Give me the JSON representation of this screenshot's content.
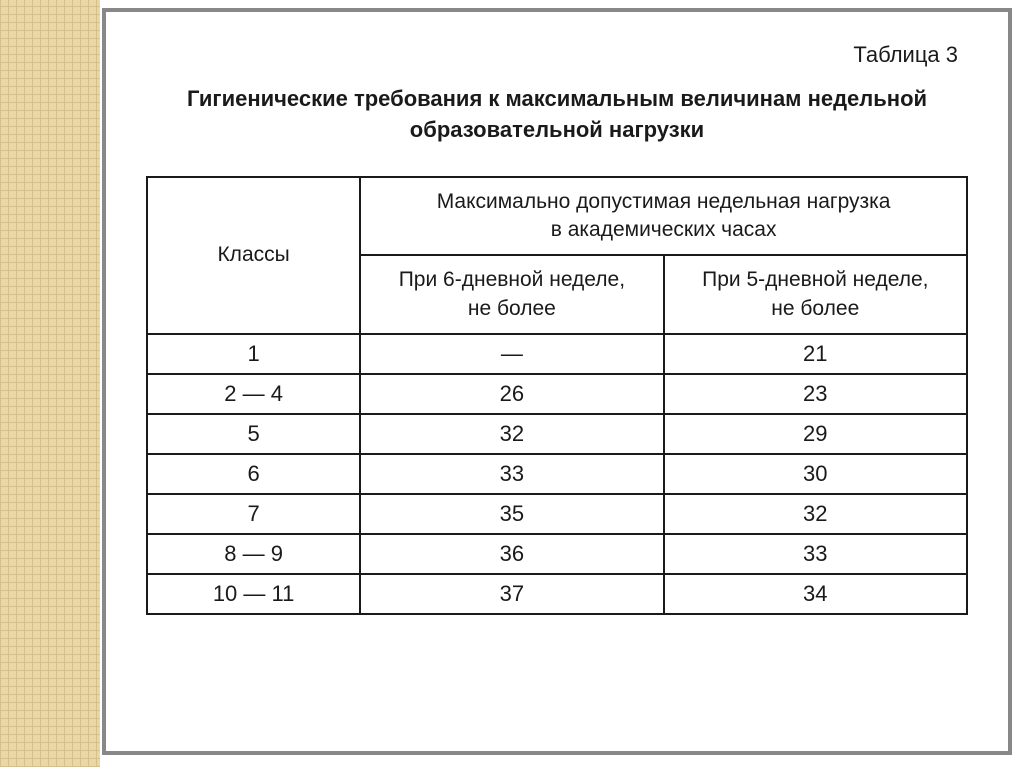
{
  "document": {
    "table_label": "Таблица 3",
    "title_line1": "Гигиенические требования к максимальным величинам недельной",
    "title_line2": "образовательной нагрузки"
  },
  "table": {
    "type": "table",
    "background_color": "#ffffff",
    "border_color": "#1a1a1a",
    "text_color": "#1a1a1a",
    "header_fontsize": 21,
    "cell_fontsize": 22,
    "border_width": 2,
    "columns": {
      "col1_header": "Классы",
      "col2_merged_line1": "Максимально допустимая недельная нагрузка",
      "col2_merged_line2": "в академических часах",
      "col2a_line1": "При 6-дневной неделе,",
      "col2a_line2": "не более",
      "col2b_line1": "При 5-дневной неделе,",
      "col2b_line2": "не более"
    },
    "rows": [
      {
        "class": "1",
        "six_day": "—",
        "five_day": "21"
      },
      {
        "class": "2 — 4",
        "six_day": "26",
        "five_day": "23"
      },
      {
        "class": "5",
        "six_day": "32",
        "five_day": "29"
      },
      {
        "class": "6",
        "six_day": "33",
        "five_day": "30"
      },
      {
        "class": "7",
        "six_day": "35",
        "five_day": "32"
      },
      {
        "class": "8 — 9",
        "six_day": "36",
        "five_day": "33"
      },
      {
        "class": "10 — 11",
        "six_day": "37",
        "five_day": "34"
      }
    ]
  },
  "styling": {
    "pattern_bg_color": "#e8d8a8",
    "pattern_line_color": "#d4c088",
    "frame_border_color": "#888888",
    "frame_border_width": 4,
    "page_bg_color": "#ffffff"
  }
}
